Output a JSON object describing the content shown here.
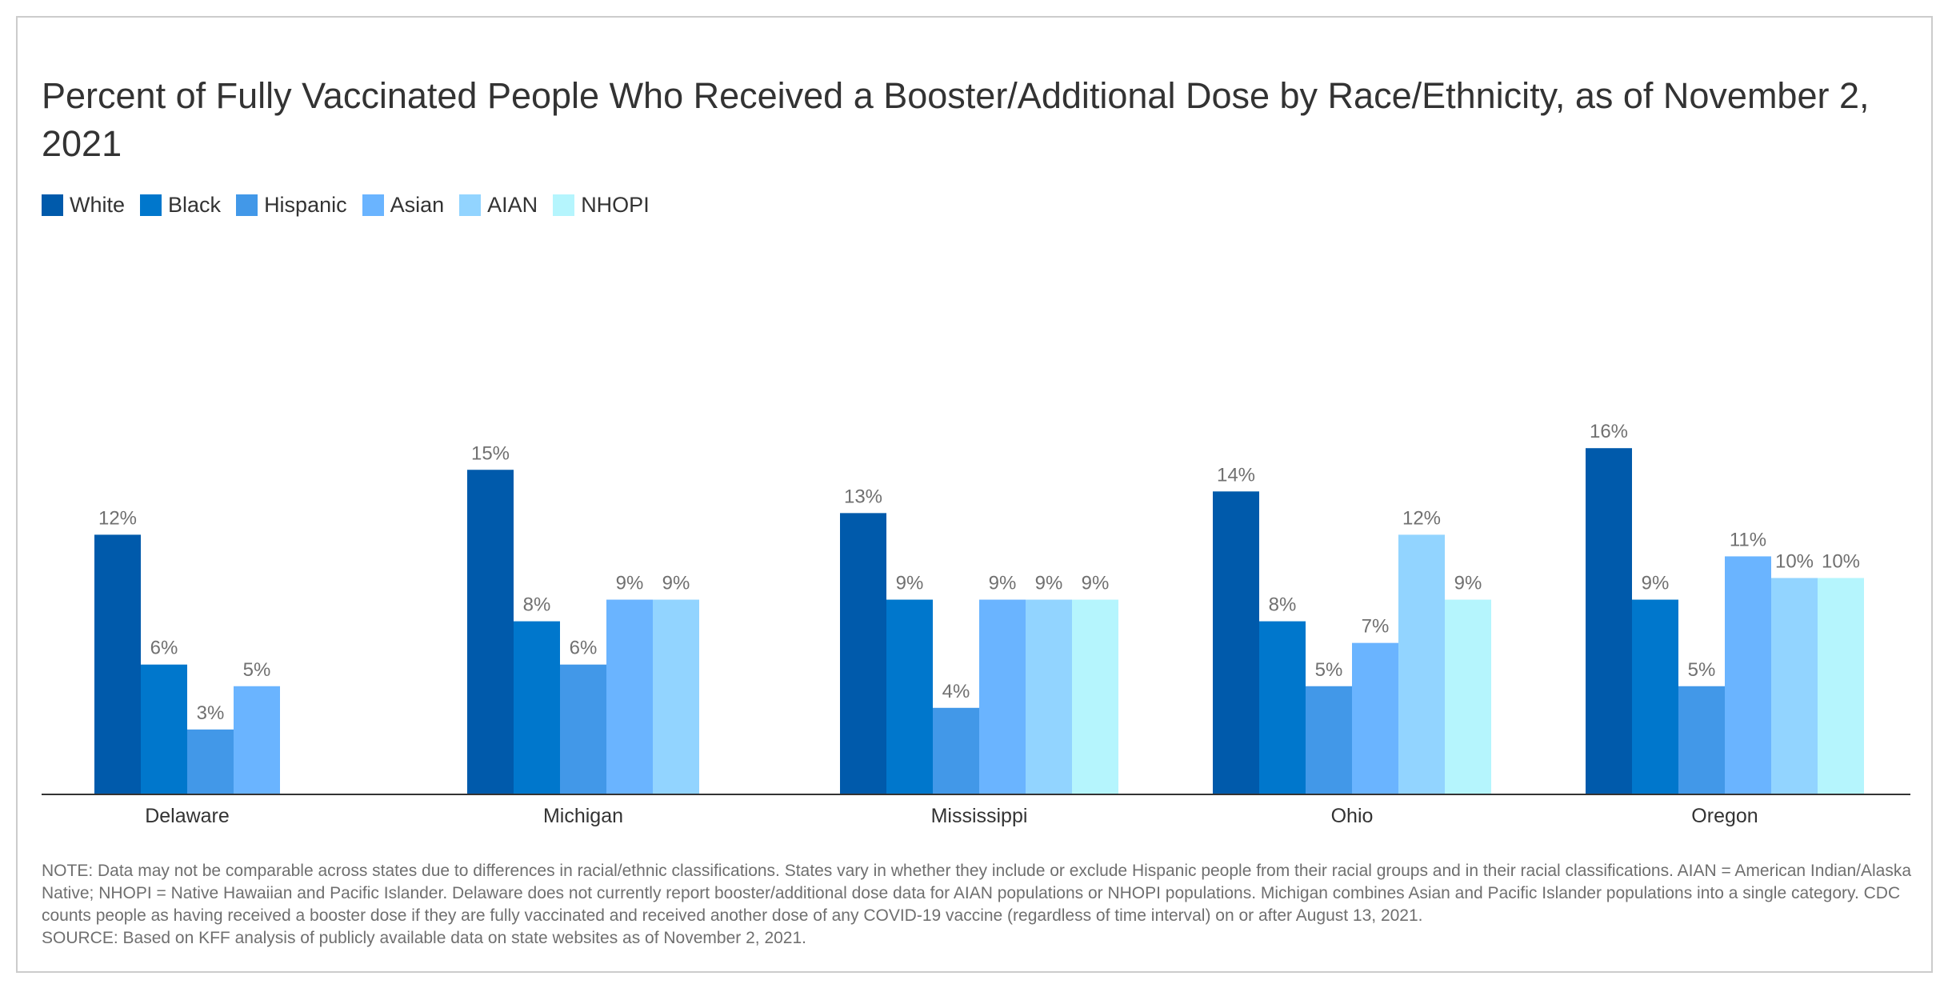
{
  "title": "Percent of Fully Vaccinated People Who Received a Booster/Additional Dose by Race/Ethnicity, as of November 2, 2021",
  "note": "NOTE: Data may not be comparable across states due to differences in racial/ethnic classifications. States vary in whether they include or exclude Hispanic people from their racial groups and in their racial classifications. AIAN = American Indian/Alaska Native; NHOPI = Native Hawaiian and Pacific Islander. Delaware does not currently report booster/additional dose data for AIAN populations or NHOPI populations. Michigan combines Asian and Pacific Islander populations into a single category. CDC counts people as having received a booster dose if they are fully vaccinated and received another dose of any COVID-19 vaccine (regardless of time interval) on or after August 13, 2021.",
  "source": "SOURCE: Based on KFF analysis of publicly available data on state websites as of November 2, 2021.",
  "chart_data": {
    "type": "bar",
    "title": "Percent of Fully Vaccinated People Who Received a Booster/Additional Dose by Race/Ethnicity, as of November 2, 2021",
    "xlabel": "",
    "ylabel": "",
    "ylim": [
      0,
      25
    ],
    "grid": false,
    "legend_position": "top-left",
    "value_suffix": "%",
    "categories": [
      "Delaware",
      "Michigan",
      "Mississippi",
      "Ohio",
      "Oregon"
    ],
    "series": [
      {
        "name": "White",
        "color": "#005aab",
        "values": [
          12,
          15,
          13,
          14,
          16
        ]
      },
      {
        "name": "Black",
        "color": "#0077cc",
        "values": [
          6,
          8,
          9,
          8,
          9
        ]
      },
      {
        "name": "Hispanic",
        "color": "#4298e8",
        "values": [
          3,
          6,
          4,
          5,
          5
        ]
      },
      {
        "name": "Asian",
        "color": "#6ab4ff",
        "values": [
          5,
          9,
          9,
          7,
          11
        ]
      },
      {
        "name": "AIAN",
        "color": "#92d4ff",
        "values": [
          null,
          9,
          9,
          12,
          10
        ]
      },
      {
        "name": "NHOPI",
        "color": "#b5f5fd",
        "values": [
          null,
          null,
          9,
          9,
          10
        ]
      }
    ]
  }
}
